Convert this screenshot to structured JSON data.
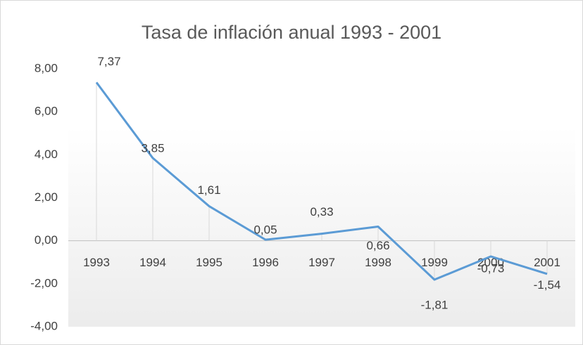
{
  "chart_data": {
    "type": "line",
    "title": "Tasa de inflación anual 1993 - 2001",
    "categories": [
      "1993",
      "1994",
      "1995",
      "1996",
      "1997",
      "1998",
      "1999",
      "2000",
      "2001"
    ],
    "values": [
      7.37,
      3.85,
      1.61,
      0.05,
      0.33,
      0.66,
      -1.81,
      -0.73,
      -1.54
    ],
    "value_labels": [
      "7,37",
      "3,85",
      "1,61",
      "0,05",
      "0,33",
      "0,66",
      "-1,81",
      "-0,73",
      "-1,54"
    ],
    "color": "#5b9bd5",
    "ylim": [
      -4,
      8
    ],
    "yticks": [
      {
        "value": -4,
        "label": "-4,00"
      },
      {
        "value": -2,
        "label": "-2,00"
      },
      {
        "value": 0,
        "label": "0,00"
      },
      {
        "value": 2,
        "label": "2,00"
      },
      {
        "value": 4,
        "label": "4,00"
      },
      {
        "value": 6,
        "label": "6,00"
      },
      {
        "value": 8,
        "label": "8,00"
      }
    ],
    "grid": false
  }
}
